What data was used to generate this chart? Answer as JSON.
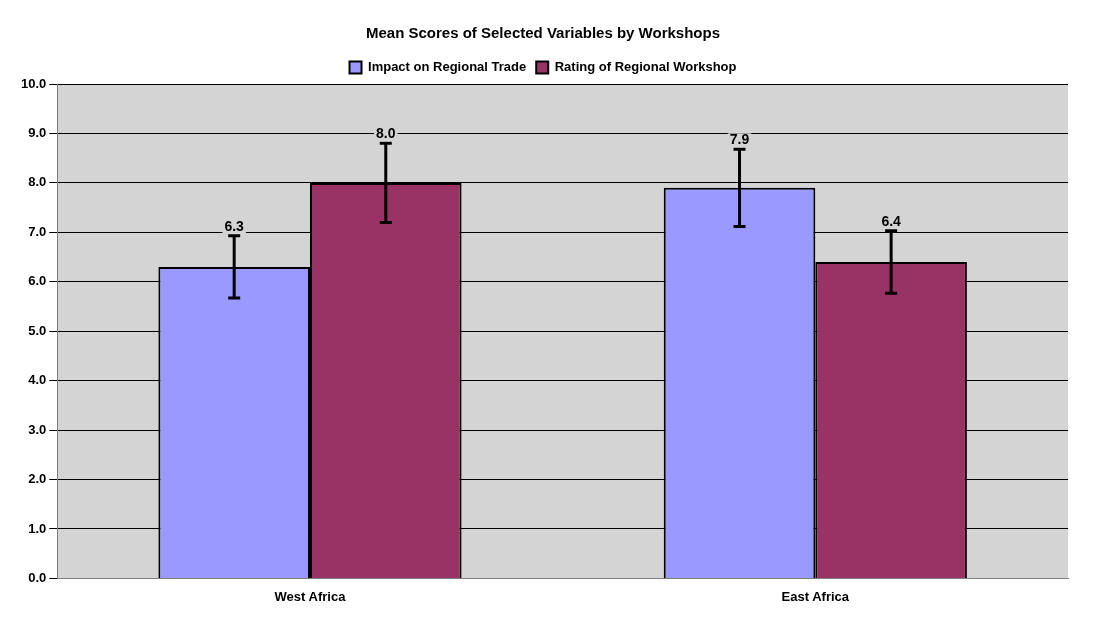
{
  "chart_data": {
    "type": "bar",
    "title": "Mean Scores of Selected Variables by Workshops",
    "categories": [
      "West Africa",
      "East Africa"
    ],
    "series": [
      {
        "name": "Impact on Regional Trade",
        "color": "#9999ff",
        "values": [
          6.3,
          7.9
        ],
        "errors": [
          0.63,
          0.78
        ],
        "value_labels": [
          "6.3",
          "7.9"
        ]
      },
      {
        "name": "Rating of Regional Workshop",
        "color": "#993366",
        "values": [
          8.0,
          6.4
        ],
        "errors": [
          0.8,
          0.63
        ],
        "value_labels": [
          "8.0",
          "6.4"
        ]
      }
    ],
    "ylim": [
      0,
      10
    ],
    "yticks": [
      {
        "value": 0,
        "label": "0.0"
      },
      {
        "value": 1,
        "label": "1.0"
      },
      {
        "value": 2,
        "label": "2.0"
      },
      {
        "value": 3,
        "label": "3.0"
      },
      {
        "value": 4,
        "label": "4.0"
      },
      {
        "value": 5,
        "label": "5.0"
      },
      {
        "value": 6,
        "label": "6.0"
      },
      {
        "value": 7,
        "label": "7.0"
      },
      {
        "value": 8,
        "label": "8.0"
      },
      {
        "value": 9,
        "label": "9.0"
      },
      {
        "value": 10,
        "label": "10.0"
      }
    ],
    "grid": "y",
    "legend": "top"
  }
}
